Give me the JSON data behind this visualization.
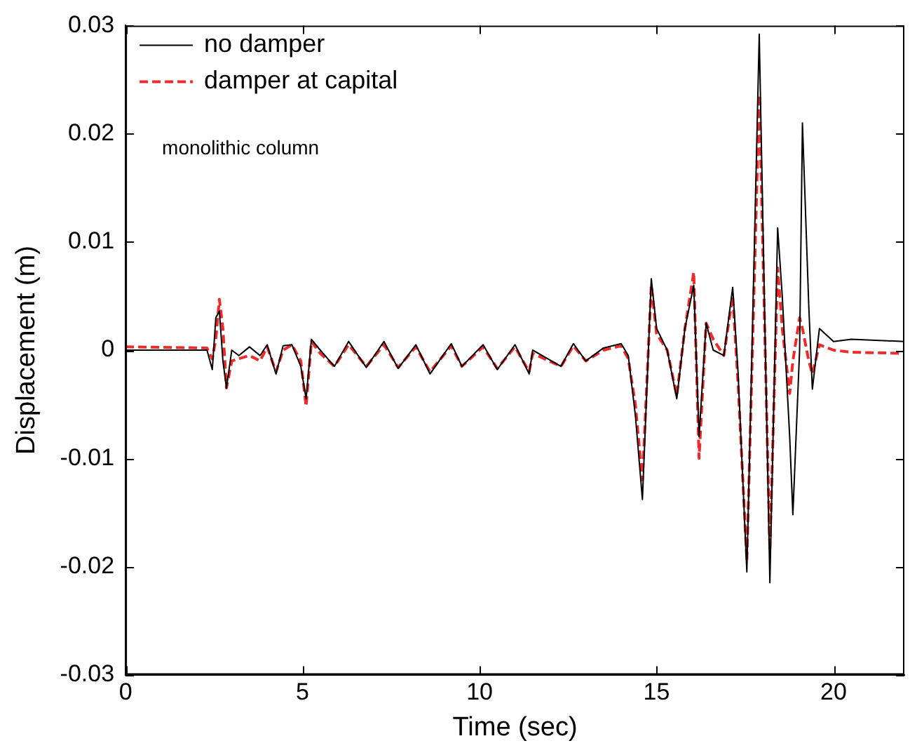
{
  "chart_data": {
    "type": "line",
    "xlabel": "Time (sec)",
    "ylabel": "Displacement (m)",
    "xlim": [
      0,
      22
    ],
    "xticks": [
      0,
      5,
      10,
      15,
      20
    ],
    "ylim": [
      -0.03,
      0.03
    ],
    "yticks": [
      -0.03,
      -0.02,
      -0.01,
      0,
      0.01,
      0.02,
      0.03
    ],
    "grid": false,
    "legend": "top left",
    "marker": "none",
    "annotations": [
      "monolithic column"
    ],
    "x": [
      0,
      2.3,
      2.45,
      2.55,
      2.65,
      2.75,
      2.85,
      3.0,
      3.2,
      3.5,
      3.8,
      4.0,
      4.25,
      4.45,
      4.7,
      4.95,
      5.1,
      5.25,
      5.5,
      5.9,
      6.3,
      6.8,
      7.3,
      7.7,
      8.2,
      8.6,
      9.2,
      9.5,
      10.1,
      10.5,
      11.0,
      11.4,
      11.5,
      12.3,
      12.65,
      13.0,
      13.5,
      14.0,
      14.2,
      14.4,
      14.6,
      14.85,
      15.0,
      15.3,
      15.57,
      15.8,
      16.05,
      16.2,
      16.4,
      16.6,
      16.9,
      17.15,
      17.3,
      17.55,
      17.9,
      18.2,
      18.42,
      18.55,
      18.76,
      18.85,
      19.04,
      19.12,
      19.3,
      19.4,
      19.6,
      20.0,
      20.5,
      22
    ],
    "series": [
      {
        "name": "no damper",
        "color": "#000000",
        "line_style": "solid",
        "values": [
          0,
          0,
          -0.0018,
          0.003,
          0.0036,
          -0.001,
          -0.0035,
          0,
          -0.0005,
          0.0003,
          -0.0005,
          0.0005,
          -0.0022,
          0.0004,
          0.0005,
          -0.0015,
          -0.0045,
          0.001,
          0,
          -0.0015,
          0.0008,
          -0.0016,
          0.0008,
          -0.0017,
          0.0005,
          -0.0022,
          0.0006,
          -0.0015,
          0.0005,
          -0.0018,
          0.0005,
          -0.0022,
          0,
          -0.0015,
          0.0006,
          -0.001,
          0.0002,
          0.0006,
          -0.0005,
          -0.006,
          -0.0138,
          0.0066,
          0.002,
          0,
          -0.0045,
          0.002,
          0.006,
          -0.008,
          0.0025,
          0,
          -0.0005,
          0.0058,
          -0.002,
          -0.0205,
          0.0292,
          -0.0215,
          0.0113,
          0.005,
          -0.008,
          -0.0152,
          0,
          0.021,
          0.004,
          -0.0036,
          0.002,
          0.0008,
          0.001,
          0.0008
        ]
      },
      {
        "name": "damper at capital",
        "color": "#ee2b2b",
        "line_style": "dashed",
        "values": [
          0.0003,
          0.0002,
          -0.0008,
          0.001,
          0.0047,
          0.002,
          -0.0035,
          -0.001,
          -0.0008,
          -0.0005,
          -0.001,
          0.0003,
          -0.002,
          0,
          0.0005,
          -0.001,
          -0.0052,
          0.0008,
          -0.0003,
          -0.0015,
          0.0005,
          -0.0015,
          0.0005,
          -0.0016,
          0.0003,
          -0.002,
          0.0004,
          -0.0015,
          0.0003,
          -0.0017,
          0.0003,
          -0.002,
          -0.0003,
          -0.0015,
          0.0004,
          -0.001,
          0,
          0.0004,
          -0.0008,
          -0.005,
          -0.012,
          0.006,
          0.0015,
          0,
          -0.0042,
          0.002,
          0.0072,
          -0.01,
          0.0025,
          0.001,
          -0.0005,
          0.005,
          -0.003,
          -0.0195,
          0.0236,
          -0.0185,
          0.0076,
          0.002,
          -0.004,
          -0.001,
          0.003,
          0.002,
          -0.001,
          -0.0022,
          0.0005,
          0,
          -0.0002,
          -0.0003
        ]
      }
    ]
  }
}
